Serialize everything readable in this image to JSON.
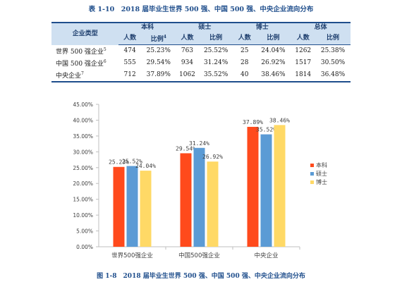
{
  "table": {
    "title": "表 1-10　2018 届毕业生世界 500 强、中国 500 强、中央企业流向分布",
    "corner_header": "企业类型",
    "groups": [
      "本科",
      "硕士",
      "博士",
      "总体"
    ],
    "subheaders": [
      "人数",
      "比例",
      "人数",
      "比例",
      "人数",
      "比例",
      "人数",
      "比例"
    ],
    "first_ratio_mark": "4",
    "rows": [
      {
        "label": "世界 500 强企业",
        "mark": "5",
        "cells": [
          "474",
          "25.23%",
          "763",
          "25.52%",
          "25",
          "24.04%",
          "1262",
          "25.38%"
        ]
      },
      {
        "label": "中国 500 强企业",
        "mark": "6",
        "cells": [
          "555",
          "29.54%",
          "934",
          "31.24%",
          "28",
          "26.92%",
          "1517",
          "30.50%"
        ]
      },
      {
        "label": "中央企业",
        "mark": "7",
        "cells": [
          "712",
          "37.89%",
          "1062",
          "35.52%",
          "40",
          "38.46%",
          "1814",
          "36.48%"
        ]
      }
    ]
  },
  "chart_data": {
    "type": "bar",
    "categories": [
      "世界500强企业",
      "中国500强企业",
      "中央企业"
    ],
    "series": [
      {
        "name": "本科",
        "color": "#ff4a1c",
        "values": [
          25.23,
          29.54,
          37.89
        ],
        "labels": [
          "25.23%",
          "29.54%",
          "37.89%"
        ]
      },
      {
        "name": "硕士",
        "color": "#5b9bd5",
        "values": [
          25.52,
          31.24,
          35.52
        ],
        "labels": [
          "25.52%",
          "31.24%",
          "35.52%"
        ]
      },
      {
        "name": "博士",
        "color": "#ffd966",
        "values": [
          24.04,
          26.92,
          38.46
        ],
        "labels": [
          "24.04%",
          "26.92%",
          "38.46%"
        ]
      }
    ],
    "ylim": [
      0,
      45
    ],
    "yticks": [
      "0.00%",
      "5.00%",
      "10.00%",
      "15.00%",
      "20.00%",
      "25.00%",
      "30.00%",
      "35.00%",
      "40.00%",
      "45.00%"
    ],
    "ytick_values": [
      0,
      5,
      10,
      15,
      20,
      25,
      30,
      35,
      40,
      45
    ],
    "grid": false,
    "legend": "right",
    "caption": "图 1-8　2018 届毕业生世界 500 强、中国 500 强、中央企业流向分布"
  }
}
